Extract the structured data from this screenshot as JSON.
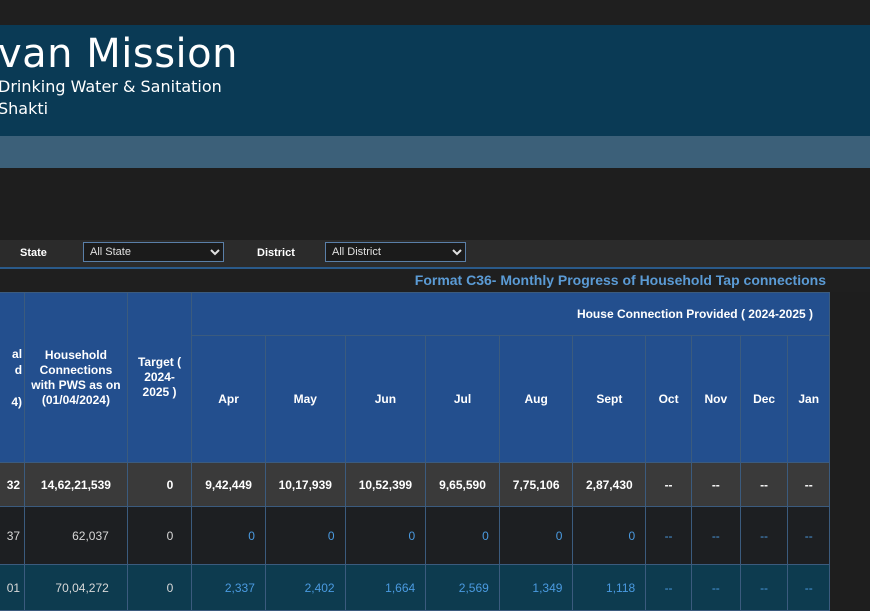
{
  "header": {
    "title": "van Mission",
    "subtitle_line1": "Drinking Water & Sanitation",
    "subtitle_line2": "Shakti"
  },
  "filters": {
    "state_label": "State",
    "state_value": "All State",
    "district_label": "District",
    "district_value": "All District"
  },
  "format_title": "Format C36- Monthly Progress of Household Tap connections",
  "table": {
    "col0_header_lines": [
      "al",
      "d",
      "4)"
    ],
    "col1_header": "Household Connections with PWS as on (01/04/2024)",
    "col2_header": "Target ( 2024-2025 )",
    "hc_header": "House Connection Provided ( 2024-2025 )",
    "months": [
      "Apr",
      "May",
      "Jun",
      "Jul",
      "Aug",
      "Sept",
      "Oct",
      "Nov",
      "Dec",
      "Jan"
    ],
    "total_row": {
      "col0": "32",
      "col1": "14,62,21,539",
      "col2": "0",
      "months": [
        "9,42,449",
        "10,17,939",
        "10,52,399",
        "9,65,590",
        "7,75,106",
        "2,87,430",
        "--",
        "--",
        "--",
        "--"
      ]
    },
    "rows": [
      {
        "col0": "37",
        "col1": "62,037",
        "col2": "0",
        "months": [
          "0",
          "0",
          "0",
          "0",
          "0",
          "0",
          "--",
          "--",
          "--",
          "--"
        ]
      },
      {
        "col0": "01",
        "col1": "70,04,272",
        "col2": "0",
        "months": [
          "2,337",
          "2,402",
          "1,664",
          "2,569",
          "1,349",
          "1,118",
          "--",
          "--",
          "--",
          "--"
        ]
      }
    ]
  }
}
